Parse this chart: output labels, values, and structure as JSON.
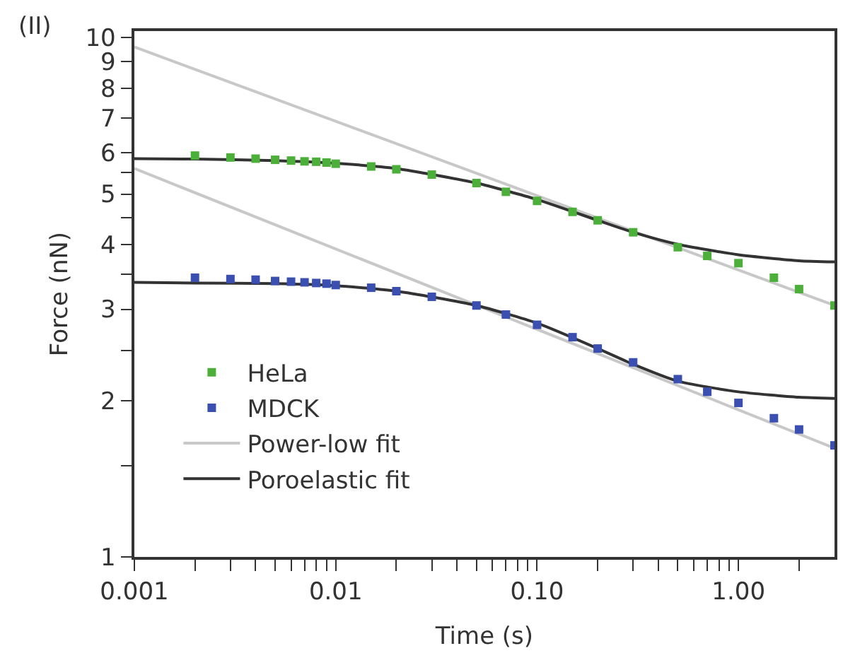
{
  "chart_data": {
    "type": "scatter",
    "xlabel": "Time (s)",
    "ylabel": "Force (nN)",
    "log": "xy",
    "grid": false,
    "legend": "bottom left",
    "annotations": [
      "(II)"
    ],
    "xlim": [
      0.001,
      3
    ],
    "ylim": [
      1,
      10.3
    ],
    "xticks": [
      0.001,
      {
        "value": 0.002,
        "label": null
      },
      {
        "value": 0.003,
        "label": null
      },
      {
        "value": 0.004,
        "label": null
      },
      {
        "value": 0.005,
        "label": null
      },
      {
        "value": 0.006,
        "label": null
      },
      {
        "value": 0.007,
        "label": null
      },
      {
        "value": 0.008,
        "label": null
      },
      {
        "value": 0.009,
        "label": null
      },
      0.01,
      {
        "value": 0.02,
        "label": null
      },
      {
        "value": 0.03,
        "label": null
      },
      {
        "value": 0.04,
        "label": null
      },
      {
        "value": 0.05,
        "label": null
      },
      {
        "value": 0.06,
        "label": null
      },
      {
        "value": 0.07,
        "label": null
      },
      {
        "value": 0.08,
        "label": null
      },
      {
        "value": 0.09,
        "label": null
      },
      {
        "value": 0.1,
        "label": "0.10"
      },
      {
        "value": 0.2,
        "label": null
      },
      {
        "value": 0.3,
        "label": null
      },
      {
        "value": 0.4,
        "label": null
      },
      {
        "value": 0.5,
        "label": null
      },
      {
        "value": 0.6,
        "label": null
      },
      {
        "value": 0.7,
        "label": null
      },
      {
        "value": 0.8,
        "label": null
      },
      {
        "value": 0.9,
        "label": null
      },
      {
        "value": 1,
        "label": "1.00"
      },
      {
        "value": 2,
        "label": null
      }
    ],
    "yticks": [
      1,
      {
        "value": 1.5,
        "label": null
      },
      2,
      {
        "value": 2.5,
        "label": null
      },
      3,
      {
        "value": 3.5,
        "label": null
      },
      4,
      {
        "value": 4.5,
        "label": null
      },
      5,
      {
        "value": 5.5,
        "label": null
      },
      6,
      7,
      8,
      9,
      10
    ],
    "series": [
      {
        "name": "HeLa",
        "marker": "square",
        "color": "#4caf3a",
        "x": [
          0.002,
          0.003,
          0.004,
          0.005,
          0.006,
          0.007,
          0.008,
          0.009,
          0.01,
          0.015,
          0.02,
          0.03,
          0.05,
          0.07,
          0.1,
          0.15,
          0.2,
          0.3,
          0.5,
          0.7,
          1,
          1.5,
          2,
          3
        ],
        "values": [
          5.93,
          5.88,
          5.85,
          5.82,
          5.8,
          5.78,
          5.77,
          5.75,
          5.72,
          5.65,
          5.58,
          5.45,
          5.25,
          5.05,
          4.85,
          4.62,
          4.45,
          4.22,
          3.95,
          3.8,
          3.68,
          3.45,
          3.28,
          3.05
        ]
      },
      {
        "name": "MDCK",
        "marker": "square",
        "color": "#3a4fb0",
        "x": [
          0.002,
          0.003,
          0.004,
          0.005,
          0.006,
          0.007,
          0.008,
          0.009,
          0.01,
          0.015,
          0.02,
          0.03,
          0.05,
          0.07,
          0.1,
          0.15,
          0.2,
          0.3,
          0.5,
          0.7,
          1,
          1.5,
          2,
          3
        ],
        "values": [
          3.45,
          3.43,
          3.42,
          3.4,
          3.39,
          3.38,
          3.37,
          3.36,
          3.34,
          3.3,
          3.25,
          3.17,
          3.05,
          2.93,
          2.8,
          2.65,
          2.52,
          2.37,
          2.2,
          2.08,
          1.98,
          1.85,
          1.76,
          1.64
        ]
      },
      {
        "name": "Power-low fit",
        "type": "line",
        "marker": "none",
        "color": "#c8c8c8",
        "x": [
          0.001,
          3
        ],
        "values": [
          9.6,
          3.05
        ]
      },
      {
        "type": "line",
        "marker": "none",
        "color": "#c8c8c8",
        "x": [
          0.001,
          3
        ],
        "values": [
          5.6,
          1.62
        ]
      },
      {
        "name": "Poroelastic fit",
        "type": "line",
        "marker": "none",
        "color": "#333333",
        "x": [
          0.001,
          0.002,
          0.005,
          0.01,
          0.02,
          0.05,
          0.1,
          0.2,
          0.3,
          0.5,
          1,
          2,
          3
        ],
        "values": [
          5.85,
          5.84,
          5.8,
          5.73,
          5.6,
          5.25,
          4.88,
          4.45,
          4.22,
          4.0,
          3.82,
          3.72,
          3.7
        ]
      },
      {
        "type": "line",
        "marker": "none",
        "color": "#333333",
        "x": [
          0.001,
          0.002,
          0.005,
          0.01,
          0.02,
          0.05,
          0.1,
          0.2,
          0.3,
          0.5,
          1,
          2,
          3
        ],
        "values": [
          3.38,
          3.37,
          3.36,
          3.33,
          3.25,
          3.05,
          2.82,
          2.52,
          2.35,
          2.18,
          2.08,
          2.03,
          2.02
        ]
      }
    ]
  }
}
